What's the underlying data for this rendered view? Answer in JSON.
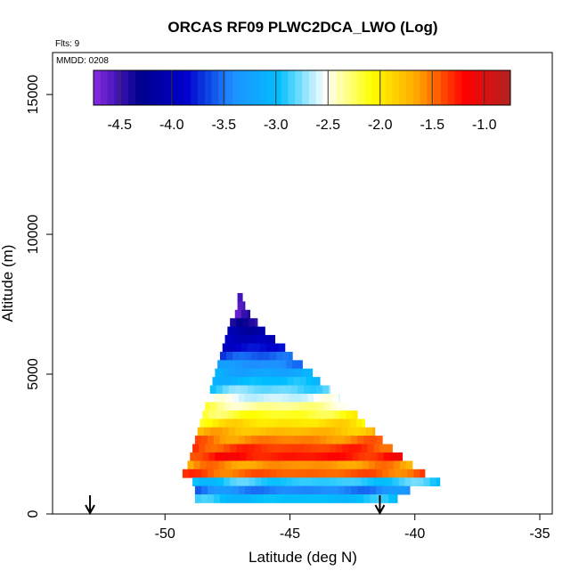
{
  "chart_data": {
    "type": "heatmap",
    "title": "ORCAS RF09 PLWC2DCA_LWO (Log)",
    "flights_note": "Flts: 9",
    "date_note": "MMDD: 0208",
    "xlabel": "Latitude (deg N)",
    "ylabel": "Altitude (m)",
    "xlim": [
      -54.5,
      -34.5
    ],
    "ylim": [
      0,
      16500
    ],
    "x_ticks": [
      -50,
      -45,
      -40,
      -35
    ],
    "x_tick_labels": [
      "-50",
      "-45",
      "-40",
      "-35"
    ],
    "y_ticks": [
      0,
      5000,
      10000,
      15000
    ],
    "y_tick_labels": [
      "0",
      "5000",
      "10000",
      "15000"
    ],
    "colorbar": {
      "range": [
        -4.75,
        -0.75
      ],
      "ticks": [
        -4.5,
        -4.0,
        -3.5,
        -3.0,
        -2.5,
        -2.0,
        -1.5,
        -1.0
      ],
      "tick_labels": [
        "-4.5",
        "-4.0",
        "-3.5",
        "-3.0",
        "-2.5",
        "-2.0",
        "-1.5",
        "-1.0"
      ],
      "colors": [
        "#8a2be2",
        "#00008b",
        "#0000cd",
        "#1e90ff",
        "#00bfff",
        "#ffffff",
        "#ffff00",
        "#ffa500",
        "#ff0000",
        "#b22222"
      ]
    },
    "arrows_latitude": [
      -53.0,
      -41.4
    ],
    "field": {
      "description_rows": "layers of log10 water content vs altitude",
      "layers": [
        {
          "alt": 7600,
          "lat_min": -47.1,
          "lat_max": -46.9,
          "value": -4.7
        },
        {
          "alt": 7300,
          "lat_min": -47.1,
          "lat_max": -46.8,
          "value": -4.55
        },
        {
          "alt": 7000,
          "lat_min": -47.2,
          "lat_max": -46.6,
          "value": -4.45
        },
        {
          "alt": 6700,
          "lat_min": -47.4,
          "lat_max": -46.3,
          "value": -4.35
        },
        {
          "alt": 6400,
          "lat_min": -47.5,
          "lat_max": -46.0,
          "value": -4.2
        },
        {
          "alt": 6100,
          "lat_min": -47.6,
          "lat_max": -45.6,
          "value": -4.0
        },
        {
          "alt": 5800,
          "lat_min": -47.7,
          "lat_max": -45.2,
          "value": -3.8
        },
        {
          "alt": 5500,
          "lat_min": -47.8,
          "lat_max": -44.9,
          "value": -3.6
        },
        {
          "alt": 5200,
          "lat_min": -47.9,
          "lat_max": -44.5,
          "value": -3.4
        },
        {
          "alt": 4900,
          "lat_min": -48.0,
          "lat_max": -44.1,
          "value": -3.2
        },
        {
          "alt": 4600,
          "lat_min": -48.1,
          "lat_max": -43.8,
          "value": -3.0
        },
        {
          "alt": 4300,
          "lat_min": -48.2,
          "lat_max": -43.4,
          "value": -2.8
        },
        {
          "alt": 4000,
          "lat_min": -48.3,
          "lat_max": -43.0,
          "value": -2.6
        },
        {
          "alt": 3700,
          "lat_min": -48.4,
          "lat_max": -42.7,
          "value": -2.35
        },
        {
          "alt": 3400,
          "lat_min": -48.5,
          "lat_max": -42.3,
          "value": -2.15
        },
        {
          "alt": 3100,
          "lat_min": -48.6,
          "lat_max": -42.0,
          "value": -1.95
        },
        {
          "alt": 2800,
          "lat_min": -48.7,
          "lat_max": -41.6,
          "value": -1.75
        },
        {
          "alt": 2500,
          "lat_min": -48.8,
          "lat_max": -41.3,
          "value": -1.55
        },
        {
          "alt": 2200,
          "lat_min": -48.9,
          "lat_max": -40.9,
          "value": -1.35
        },
        {
          "alt": 1900,
          "lat_min": -49.0,
          "lat_max": -40.5,
          "value": -1.25
        },
        {
          "alt": 1600,
          "lat_min": -49.1,
          "lat_max": -40.1,
          "value": -1.6
        },
        {
          "alt": 1300,
          "lat_min": -49.3,
          "lat_max": -39.6,
          "value": -1.45
        },
        {
          "alt": 1000,
          "lat_min": -48.9,
          "lat_max": -39.0,
          "value": -2.9
        },
        {
          "alt": 700,
          "lat_min": -48.8,
          "lat_max": -40.2,
          "value": -3.45
        },
        {
          "alt": 400,
          "lat_min": -48.8,
          "lat_max": -40.7,
          "value": -3.0
        }
      ]
    }
  }
}
